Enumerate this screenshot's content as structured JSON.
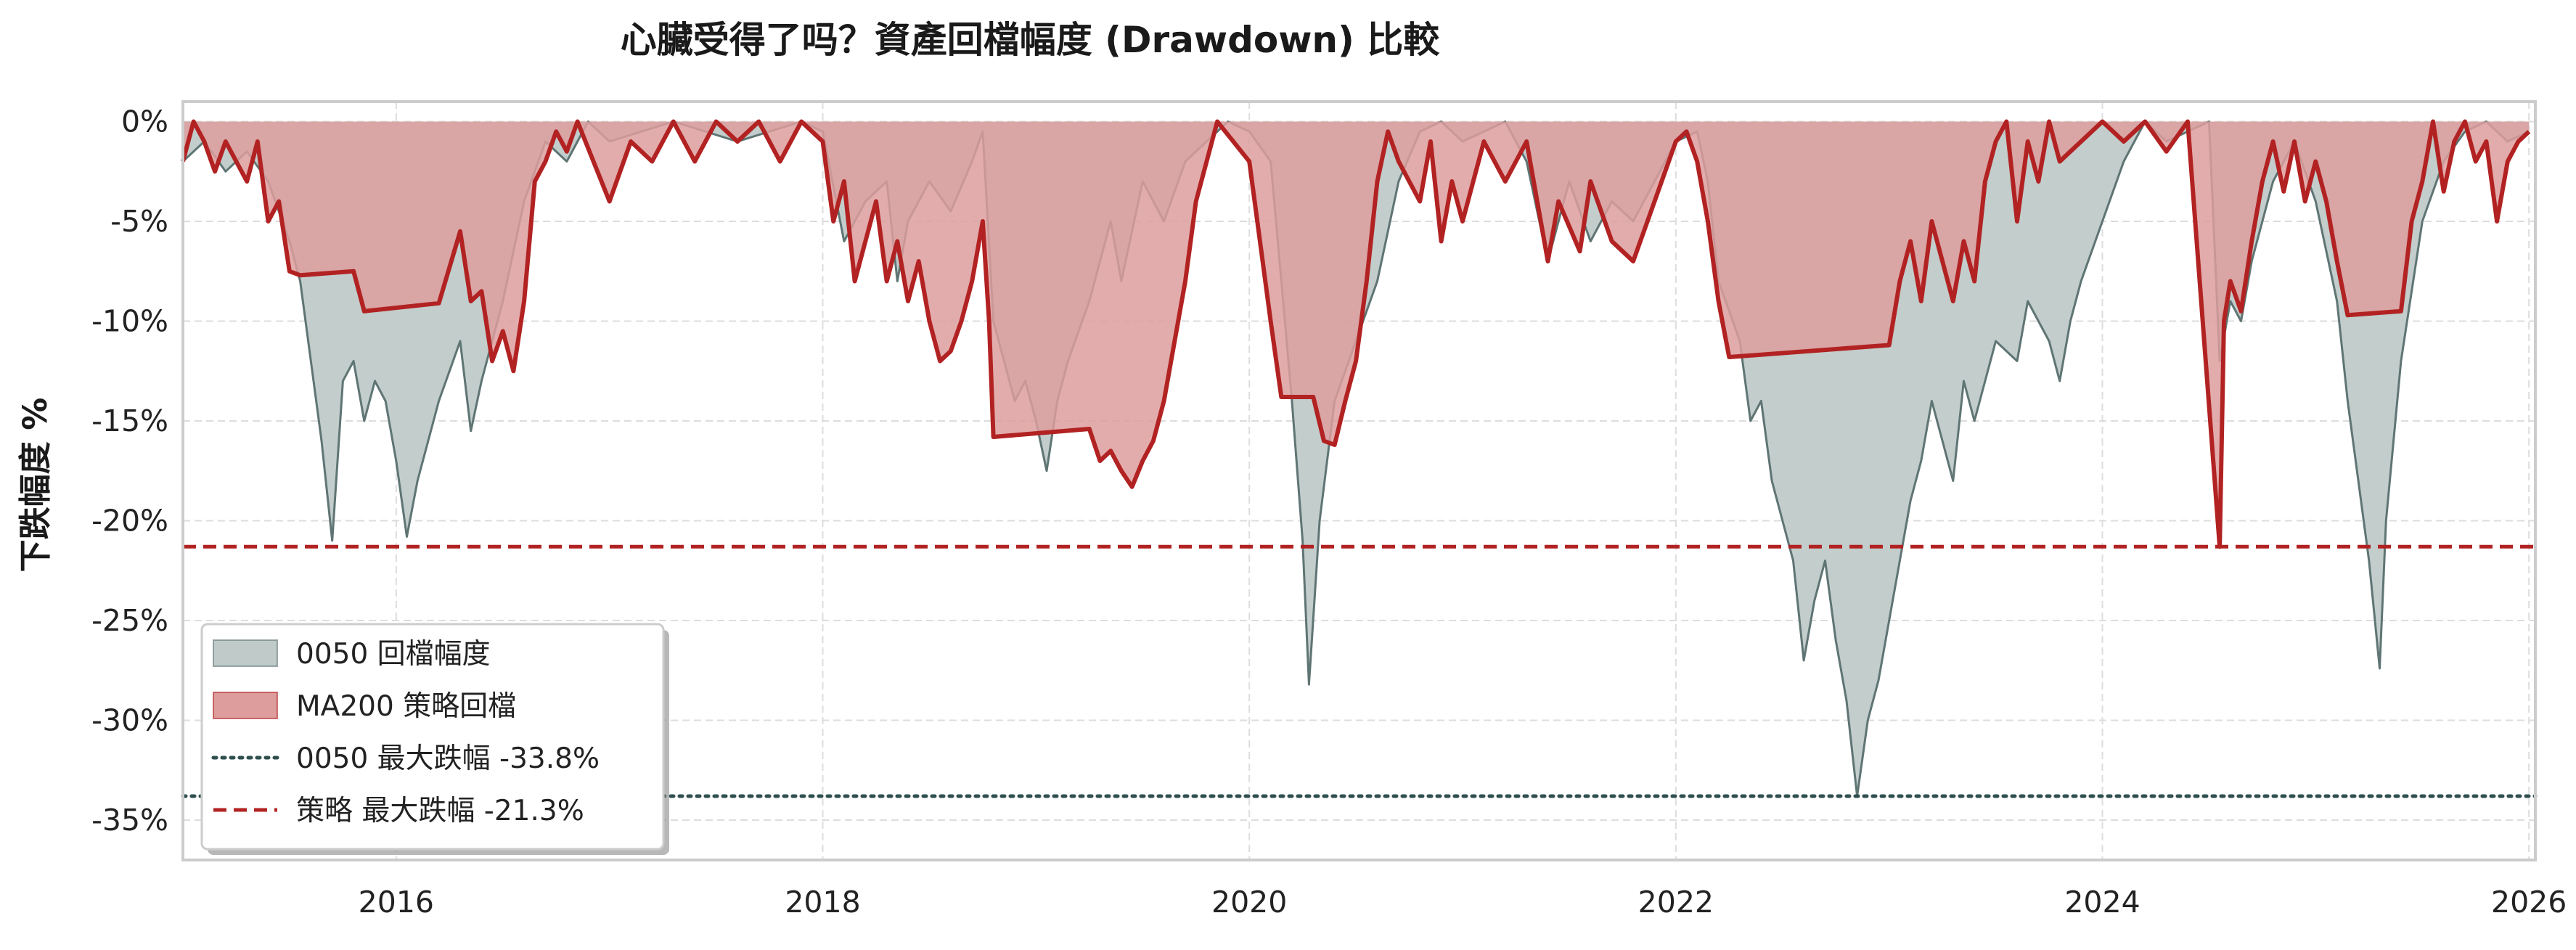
{
  "chart_data": {
    "type": "area",
    "title": "心臟受得了吗？資產回檔幅度 (Drawdown) 比較",
    "xlabel": "",
    "ylabel": "下跌幅度 %",
    "xlim": [
      2015.0,
      2026.03
    ],
    "ylim": [
      -37,
      1
    ],
    "x_ticks": [
      {
        "value": 2016,
        "label": "2016"
      },
      {
        "value": 2018,
        "label": "2018"
      },
      {
        "value": 2020,
        "label": "2020"
      },
      {
        "value": 2022,
        "label": "2022"
      },
      {
        "value": 2024,
        "label": "2024"
      },
      {
        "value": 2026,
        "label": "2026"
      }
    ],
    "y_ticks": [
      {
        "value": 0,
        "label": "0%"
      },
      {
        "value": -5,
        "label": "-5%"
      },
      {
        "value": -10,
        "label": "-10%"
      },
      {
        "value": -15,
        "label": "-15%"
      },
      {
        "value": -20,
        "label": "-20%"
      },
      {
        "value": -25,
        "label": "-25%"
      },
      {
        "value": -30,
        "label": "-30%"
      },
      {
        "value": -35,
        "label": "-35%"
      }
    ],
    "grid": true,
    "legend_position": "bottom-left",
    "series": [
      {
        "name": "0050 回檔幅度",
        "kind": "area",
        "color": "#5f7574",
        "fill": "#bfcac9",
        "points": [
          [
            2015.0,
            -2
          ],
          [
            2015.1,
            -1
          ],
          [
            2015.2,
            -2.5
          ],
          [
            2015.3,
            -1.5
          ],
          [
            2015.4,
            -3
          ],
          [
            2015.5,
            -6
          ],
          [
            2015.55,
            -8
          ],
          [
            2015.6,
            -12
          ],
          [
            2015.65,
            -16
          ],
          [
            2015.7,
            -21
          ],
          [
            2015.75,
            -13
          ],
          [
            2015.8,
            -12
          ],
          [
            2015.85,
            -15
          ],
          [
            2015.9,
            -13
          ],
          [
            2015.95,
            -14
          ],
          [
            2016.0,
            -17
          ],
          [
            2016.05,
            -20.8
          ],
          [
            2016.1,
            -18
          ],
          [
            2016.2,
            -14
          ],
          [
            2016.3,
            -11
          ],
          [
            2016.35,
            -15.5
          ],
          [
            2016.4,
            -13
          ],
          [
            2016.5,
            -9
          ],
          [
            2016.6,
            -4
          ],
          [
            2016.7,
            -1
          ],
          [
            2016.8,
            -2
          ],
          [
            2016.9,
            0
          ],
          [
            2017.0,
            -1
          ],
          [
            2017.3,
            0
          ],
          [
            2017.6,
            -1
          ],
          [
            2017.9,
            0
          ],
          [
            2018.0,
            -0.5
          ],
          [
            2018.1,
            -6
          ],
          [
            2018.2,
            -4
          ],
          [
            2018.3,
            -3
          ],
          [
            2018.35,
            -8
          ],
          [
            2018.4,
            -5
          ],
          [
            2018.5,
            -3
          ],
          [
            2018.6,
            -4.5
          ],
          [
            2018.7,
            -2
          ],
          [
            2018.75,
            -0.5
          ],
          [
            2018.8,
            -10
          ],
          [
            2018.85,
            -12
          ],
          [
            2018.9,
            -14
          ],
          [
            2018.95,
            -13
          ],
          [
            2019.0,
            -15
          ],
          [
            2019.05,
            -17.5
          ],
          [
            2019.1,
            -14
          ],
          [
            2019.15,
            -12
          ],
          [
            2019.25,
            -9
          ],
          [
            2019.35,
            -5
          ],
          [
            2019.4,
            -8
          ],
          [
            2019.5,
            -3
          ],
          [
            2019.6,
            -5
          ],
          [
            2019.7,
            -2
          ],
          [
            2019.8,
            -1
          ],
          [
            2019.9,
            0
          ],
          [
            2020.0,
            -0.5
          ],
          [
            2020.1,
            -2
          ],
          [
            2020.15,
            -8
          ],
          [
            2020.2,
            -14
          ],
          [
            2020.25,
            -21
          ],
          [
            2020.28,
            -28.2
          ],
          [
            2020.33,
            -20
          ],
          [
            2020.4,
            -14
          ],
          [
            2020.5,
            -11
          ],
          [
            2020.6,
            -8
          ],
          [
            2020.7,
            -3
          ],
          [
            2020.8,
            -0.5
          ],
          [
            2020.9,
            0
          ],
          [
            2021.0,
            -1
          ],
          [
            2021.2,
            0
          ],
          [
            2021.3,
            -2
          ],
          [
            2021.4,
            -7
          ],
          [
            2021.5,
            -3
          ],
          [
            2021.6,
            -6
          ],
          [
            2021.7,
            -4
          ],
          [
            2021.8,
            -5
          ],
          [
            2021.9,
            -3
          ],
          [
            2022.0,
            -1
          ],
          [
            2022.1,
            -0.5
          ],
          [
            2022.15,
            -3
          ],
          [
            2022.2,
            -8
          ],
          [
            2022.3,
            -11
          ],
          [
            2022.35,
            -15
          ],
          [
            2022.4,
            -14
          ],
          [
            2022.45,
            -18
          ],
          [
            2022.5,
            -20
          ],
          [
            2022.55,
            -22
          ],
          [
            2022.6,
            -27
          ],
          [
            2022.65,
            -24
          ],
          [
            2022.7,
            -22
          ],
          [
            2022.75,
            -26
          ],
          [
            2022.8,
            -29
          ],
          [
            2022.85,
            -33.8
          ],
          [
            2022.9,
            -30
          ],
          [
            2022.95,
            -28
          ],
          [
            2023.0,
            -25
          ],
          [
            2023.05,
            -22
          ],
          [
            2023.1,
            -19
          ],
          [
            2023.15,
            -17
          ],
          [
            2023.2,
            -14
          ],
          [
            2023.25,
            -16
          ],
          [
            2023.3,
            -18
          ],
          [
            2023.35,
            -13
          ],
          [
            2023.4,
            -15
          ],
          [
            2023.5,
            -11
          ],
          [
            2023.6,
            -12
          ],
          [
            2023.65,
            -9
          ],
          [
            2023.75,
            -11
          ],
          [
            2023.8,
            -13
          ],
          [
            2023.85,
            -10
          ],
          [
            2023.9,
            -8
          ],
          [
            2024.0,
            -5
          ],
          [
            2024.1,
            -2
          ],
          [
            2024.2,
            0
          ],
          [
            2024.3,
            -1
          ],
          [
            2024.4,
            -0.5
          ],
          [
            2024.5,
            0
          ],
          [
            2024.55,
            -12
          ],
          [
            2024.6,
            -9
          ],
          [
            2024.65,
            -10
          ],
          [
            2024.7,
            -7
          ],
          [
            2024.8,
            -3
          ],
          [
            2024.9,
            -1
          ],
          [
            2025.0,
            -4
          ],
          [
            2025.1,
            -9
          ],
          [
            2025.15,
            -14
          ],
          [
            2025.2,
            -18
          ],
          [
            2025.25,
            -22
          ],
          [
            2025.3,
            -27.4
          ],
          [
            2025.33,
            -20
          ],
          [
            2025.4,
            -12
          ],
          [
            2025.5,
            -5
          ],
          [
            2025.6,
            -2
          ],
          [
            2025.7,
            -0.5
          ],
          [
            2025.8,
            0
          ],
          [
            2025.9,
            -1
          ],
          [
            2026.0,
            -0.5
          ]
        ]
      },
      {
        "name": "MA200 策略回檔",
        "kind": "area",
        "color": "#b22222",
        "fill": "#dd9d9d",
        "points": [
          [
            2015.0,
            -2
          ],
          [
            2015.05,
            0
          ],
          [
            2015.1,
            -1
          ],
          [
            2015.15,
            -2.5
          ],
          [
            2015.2,
            -1
          ],
          [
            2015.3,
            -3
          ],
          [
            2015.35,
            -1
          ],
          [
            2015.4,
            -5
          ],
          [
            2015.45,
            -4
          ],
          [
            2015.5,
            -7.5
          ],
          [
            2015.55,
            -7.7
          ],
          [
            2015.8,
            -7.5
          ],
          [
            2015.85,
            -9.5
          ],
          [
            2016.2,
            -9.1
          ],
          [
            2016.3,
            -5.5
          ],
          [
            2016.35,
            -9
          ],
          [
            2016.4,
            -8.5
          ],
          [
            2016.45,
            -12
          ],
          [
            2016.5,
            -10.5
          ],
          [
            2016.55,
            -12.5
          ],
          [
            2016.6,
            -9
          ],
          [
            2016.65,
            -3
          ],
          [
            2016.7,
            -2
          ],
          [
            2016.75,
            -0.5
          ],
          [
            2016.8,
            -1.5
          ],
          [
            2016.85,
            0
          ],
          [
            2017.0,
            -4
          ],
          [
            2017.1,
            -1
          ],
          [
            2017.2,
            -2
          ],
          [
            2017.3,
            0
          ],
          [
            2017.4,
            -2
          ],
          [
            2017.5,
            0
          ],
          [
            2017.6,
            -1
          ],
          [
            2017.7,
            0
          ],
          [
            2017.8,
            -2
          ],
          [
            2017.9,
            0
          ],
          [
            2018.0,
            -1
          ],
          [
            2018.05,
            -5
          ],
          [
            2018.1,
            -3
          ],
          [
            2018.15,
            -8
          ],
          [
            2018.2,
            -6
          ],
          [
            2018.25,
            -4
          ],
          [
            2018.3,
            -8
          ],
          [
            2018.35,
            -6
          ],
          [
            2018.4,
            -9
          ],
          [
            2018.45,
            -7
          ],
          [
            2018.5,
            -10
          ],
          [
            2018.55,
            -12
          ],
          [
            2018.6,
            -11.5
          ],
          [
            2018.65,
            -10
          ],
          [
            2018.7,
            -8
          ],
          [
            2018.75,
            -5
          ],
          [
            2018.78,
            -10
          ],
          [
            2018.8,
            -15.8
          ],
          [
            2019.25,
            -15.4
          ],
          [
            2019.3,
            -17
          ],
          [
            2019.35,
            -16.5
          ],
          [
            2019.4,
            -17.5
          ],
          [
            2019.45,
            -18.3
          ],
          [
            2019.5,
            -17
          ],
          [
            2019.55,
            -16
          ],
          [
            2019.6,
            -14
          ],
          [
            2019.65,
            -11
          ],
          [
            2019.7,
            -8
          ],
          [
            2019.75,
            -4
          ],
          [
            2019.8,
            -2
          ],
          [
            2019.85,
            0
          ],
          [
            2020.0,
            -2
          ],
          [
            2020.05,
            -6
          ],
          [
            2020.1,
            -10
          ],
          [
            2020.15,
            -13.8
          ],
          [
            2020.3,
            -13.8
          ],
          [
            2020.35,
            -16
          ],
          [
            2020.4,
            -16.2
          ],
          [
            2020.45,
            -14
          ],
          [
            2020.5,
            -12
          ],
          [
            2020.55,
            -8
          ],
          [
            2020.6,
            -3
          ],
          [
            2020.65,
            -0.5
          ],
          [
            2020.7,
            -2
          ],
          [
            2020.8,
            -4
          ],
          [
            2020.85,
            -1
          ],
          [
            2020.9,
            -6
          ],
          [
            2020.95,
            -3
          ],
          [
            2021.0,
            -5
          ],
          [
            2021.1,
            -1
          ],
          [
            2021.2,
            -3
          ],
          [
            2021.3,
            -1
          ],
          [
            2021.4,
            -7
          ],
          [
            2021.45,
            -4
          ],
          [
            2021.55,
            -6.5
          ],
          [
            2021.6,
            -3
          ],
          [
            2021.7,
            -6
          ],
          [
            2021.8,
            -7
          ],
          [
            2021.9,
            -4
          ],
          [
            2022.0,
            -1
          ],
          [
            2022.05,
            -0.5
          ],
          [
            2022.1,
            -2
          ],
          [
            2022.15,
            -5
          ],
          [
            2022.2,
            -9
          ],
          [
            2022.25,
            -11.8
          ],
          [
            2023.0,
            -11.2
          ],
          [
            2023.05,
            -8
          ],
          [
            2023.1,
            -6
          ],
          [
            2023.15,
            -9
          ],
          [
            2023.2,
            -5
          ],
          [
            2023.25,
            -7
          ],
          [
            2023.3,
            -9
          ],
          [
            2023.35,
            -6
          ],
          [
            2023.4,
            -8
          ],
          [
            2023.45,
            -3
          ],
          [
            2023.5,
            -1
          ],
          [
            2023.55,
            0
          ],
          [
            2023.6,
            -5
          ],
          [
            2023.65,
            -1
          ],
          [
            2023.7,
            -3
          ],
          [
            2023.75,
            0
          ],
          [
            2023.8,
            -2
          ],
          [
            2023.9,
            -1
          ],
          [
            2024.0,
            0
          ],
          [
            2024.1,
            -1
          ],
          [
            2024.2,
            0
          ],
          [
            2024.3,
            -1.5
          ],
          [
            2024.4,
            0
          ],
          [
            2024.55,
            -21.3
          ],
          [
            2024.57,
            -10
          ],
          [
            2024.6,
            -8
          ],
          [
            2024.65,
            -9.5
          ],
          [
            2024.7,
            -6
          ],
          [
            2024.75,
            -3
          ],
          [
            2024.8,
            -1
          ],
          [
            2024.85,
            -3.5
          ],
          [
            2024.9,
            -1
          ],
          [
            2024.95,
            -4
          ],
          [
            2025.0,
            -2
          ],
          [
            2025.05,
            -4
          ],
          [
            2025.1,
            -7
          ],
          [
            2025.15,
            -9.7
          ],
          [
            2025.4,
            -9.5
          ],
          [
            2025.45,
            -5
          ],
          [
            2025.5,
            -3
          ],
          [
            2025.55,
            0
          ],
          [
            2025.6,
            -3.5
          ],
          [
            2025.65,
            -1
          ],
          [
            2025.7,
            0
          ],
          [
            2025.75,
            -2
          ],
          [
            2025.8,
            -1
          ],
          [
            2025.85,
            -5
          ],
          [
            2025.9,
            -2
          ],
          [
            2025.95,
            -1
          ],
          [
            2026.0,
            -0.5
          ]
        ]
      },
      {
        "name": "0050 最大跌幅 -33.8%",
        "kind": "hline",
        "value": -33.8,
        "color": "#2f4f4f",
        "dash": "dotted"
      },
      {
        "name": "策略 最大跌幅 -21.3%",
        "kind": "hline",
        "value": -21.3,
        "color": "#b22222",
        "dash": "dashed"
      }
    ]
  }
}
